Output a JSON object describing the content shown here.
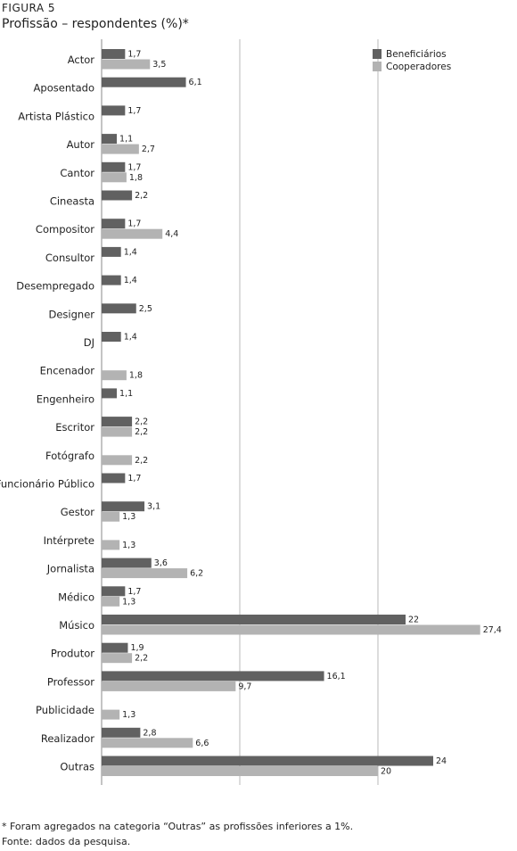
{
  "figure": {
    "label": "FIGURA 5",
    "title": "Profissão – respondentes (%)*"
  },
  "footnotes": {
    "note": "*  Foram agregados na categoria “Outras” as profissões inferiores a 1%.",
    "source": "Fonte: dados da pesquisa."
  },
  "colors": {
    "beneficiarios": "#616161",
    "cooperadores": "#b3b3b3",
    "grid": "#b8b8b8"
  },
  "chart_data": {
    "type": "bar",
    "orientation": "horizontal",
    "title": "Profissão – respondentes (%)*",
    "categories": [
      "Actor",
      "Aposentado",
      "Artista Plástico",
      "Autor",
      "Cantor",
      "Cineasta",
      "Compositor",
      "Consultor",
      "Desempregado",
      "Designer",
      "DJ",
      "Encenador",
      "Engenheiro",
      "Escritor",
      "Fotógrafo",
      "Funcionário Público",
      "Gestor",
      "Intérprete",
      "Jornalista",
      "Médico",
      "Músico",
      "Produtor",
      "Professor",
      "Publicidade",
      "Realizador",
      "Outras"
    ],
    "series": [
      {
        "name": "Beneficiários",
        "values": [
          1.7,
          6.1,
          1.7,
          1.1,
          1.7,
          2.2,
          1.7,
          1.4,
          1.4,
          2.5,
          1.4,
          null,
          1.1,
          2.2,
          null,
          1.7,
          3.1,
          null,
          3.6,
          1.7,
          22,
          1.9,
          16.1,
          null,
          2.8,
          24
        ],
        "labels": [
          "1,7",
          "6,1",
          "1,7",
          "1,1",
          "1,7",
          "2,2",
          "1,7",
          "1,4",
          "1,4",
          "2,5",
          "1,4",
          null,
          "1,1",
          "2,2",
          null,
          "1,7",
          "3,1",
          null,
          "3,6",
          "1,7",
          "22",
          "1,9",
          "16,1",
          null,
          "2,8",
          "24"
        ]
      },
      {
        "name": "Cooperadores",
        "values": [
          3.5,
          null,
          null,
          2.7,
          1.8,
          null,
          4.4,
          null,
          null,
          null,
          null,
          1.8,
          null,
          2.2,
          2.2,
          null,
          1.3,
          1.3,
          6.2,
          1.3,
          27.4,
          2.2,
          9.7,
          1.3,
          6.6,
          20
        ],
        "labels": [
          "3,5",
          null,
          null,
          "2,7",
          "1,8",
          null,
          "4,4",
          null,
          null,
          null,
          null,
          "1,8",
          null,
          "2,2",
          "2,2",
          null,
          "1,3",
          "1,3",
          "6,2",
          "1,3",
          "27,4",
          "2,2",
          "9,7",
          "1,3",
          "6,6",
          "20"
        ]
      }
    ],
    "xlim": [
      0,
      30
    ],
    "grid": true,
    "legend": "top-right"
  }
}
